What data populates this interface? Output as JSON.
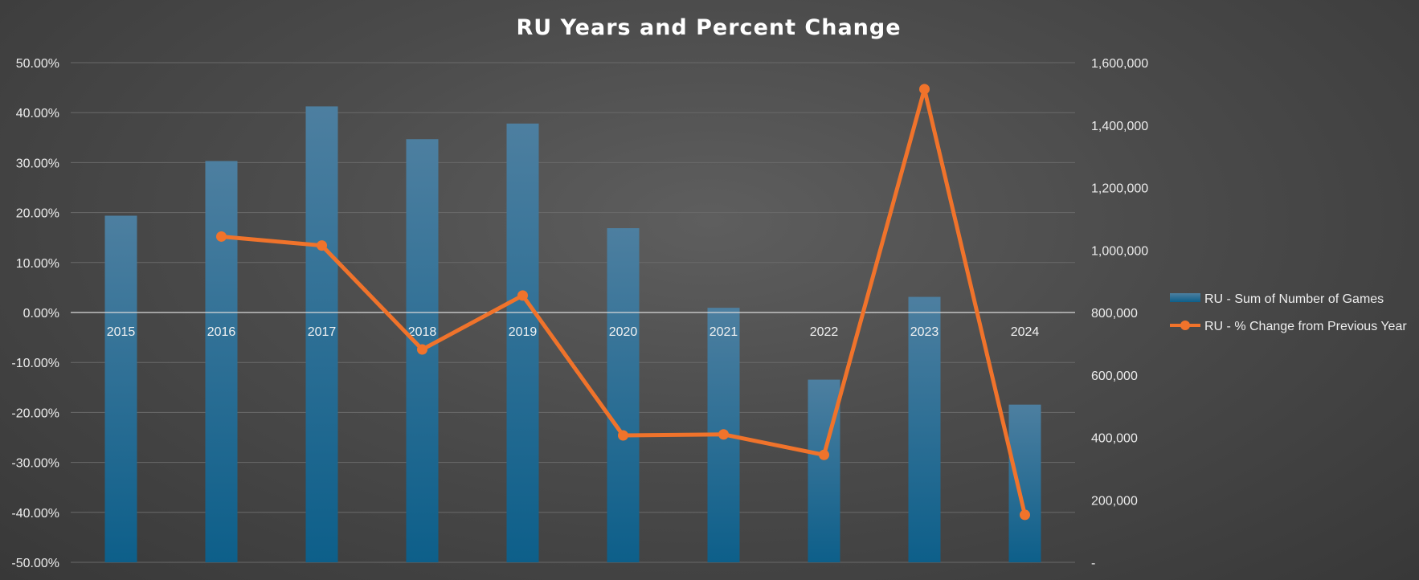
{
  "chart_data": {
    "type": "bar",
    "combo_series_types": [
      "bar",
      "line"
    ],
    "title": "RU Years and Percent Change",
    "categories": [
      "2015",
      "2016",
      "2017",
      "2018",
      "2019",
      "2020",
      "2021",
      "2022",
      "2023",
      "2024"
    ],
    "series": [
      {
        "name": "RU - Sum of Number of Games",
        "type": "bar",
        "axis": "right",
        "values": [
          1110000,
          1285000,
          1460000,
          1355000,
          1405000,
          1070000,
          815000,
          585000,
          850000,
          505000
        ]
      },
      {
        "name": "RU - % Change from Previous Year",
        "type": "line",
        "axis": "left",
        "values": [
          null,
          15.2,
          13.4,
          -7.4,
          3.4,
          -24.6,
          -24.4,
          -28.5,
          44.7,
          -40.5
        ]
      }
    ],
    "left_axis": {
      "ylim": [
        -50,
        50
      ],
      "ticks": [
        "50.00%",
        "40.00%",
        "30.00%",
        "20.00%",
        "10.00%",
        "0.00%",
        "-10.00%",
        "-20.00%",
        "-30.00%",
        "-40.00%",
        "-50.00%"
      ]
    },
    "right_axis": {
      "ylim": [
        0,
        1600000
      ],
      "ticks": [
        "1,600,000",
        "1,400,000",
        "1,200,000",
        "1,000,000",
        "800,000",
        "600,000",
        "400,000",
        "200,000",
        "-"
      ]
    },
    "grid": true,
    "legend_position": "right",
    "colors": {
      "bar_top": "#4d7fa0",
      "bar_bottom": "#0d5f8a",
      "line": "#f0732b",
      "grid": "#6a6a6a",
      "zero_line": "#d9d9d9"
    }
  }
}
